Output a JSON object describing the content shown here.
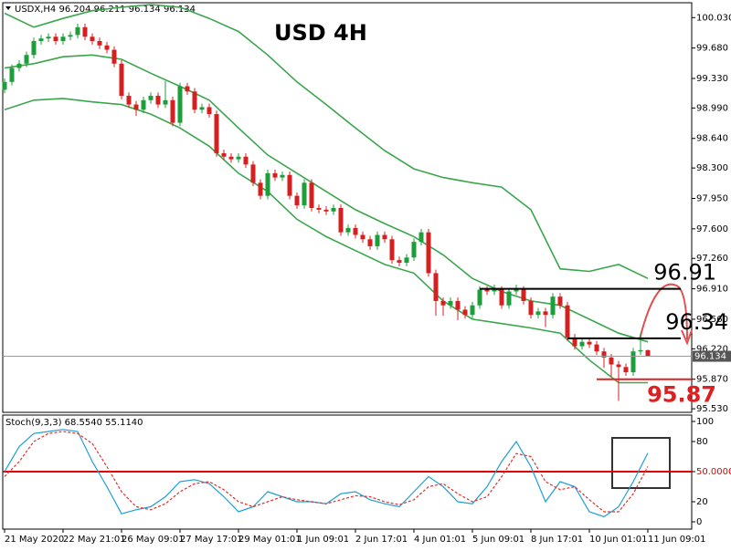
{
  "chart_data": [
    {
      "type": "candlestick",
      "header": "USDX,H4  96.204 96.211 96.134 96.134",
      "title": "USD 4H",
      "up_color": "#1e9e3a",
      "down_color": "#d42020",
      "xlim": [
        -0.25,
        94
      ],
      "ylim": [
        95.51,
        100.18
      ],
      "yticks": [
        {
          "value": 100.03,
          "label": "100.030"
        },
        {
          "value": 99.68,
          "label": "99.680"
        },
        {
          "value": 99.33,
          "label": "99.330"
        },
        {
          "value": 98.99,
          "label": "98.990"
        },
        {
          "value": 98.64,
          "label": "98.640"
        },
        {
          "value": 98.3,
          "label": "98.300"
        },
        {
          "value": 97.95,
          "label": "97.950"
        },
        {
          "value": 97.6,
          "label": "97.600"
        },
        {
          "value": 97.26,
          "label": "97.260"
        },
        {
          "value": 96.91,
          "label": "96.910"
        },
        {
          "value": 96.56,
          "label": "96.560"
        },
        {
          "value": 96.22,
          "label": "96.220"
        },
        {
          "value": 95.87,
          "label": "95.870"
        },
        {
          "value": 95.53,
          "label": "95.530"
        }
      ],
      "ohlc": [
        [
          99.2,
          99.33,
          99.16,
          99.29
        ],
        [
          99.29,
          99.49,
          99.25,
          99.45
        ],
        [
          99.45,
          99.54,
          99.41,
          99.5
        ],
        [
          99.5,
          99.64,
          99.46,
          99.6
        ],
        [
          99.6,
          99.8,
          99.56,
          99.76
        ],
        [
          99.76,
          99.83,
          99.72,
          99.79
        ],
        [
          99.79,
          99.85,
          99.75,
          99.81
        ],
        [
          99.81,
          99.85,
          99.72,
          99.76
        ],
        [
          99.76,
          99.85,
          99.72,
          99.81
        ],
        [
          99.81,
          99.87,
          99.77,
          99.83
        ],
        [
          99.83,
          99.96,
          99.79,
          99.92
        ],
        [
          99.92,
          99.96,
          99.77,
          99.81
        ],
        [
          99.81,
          99.85,
          99.72,
          99.76
        ],
        [
          99.76,
          99.8,
          99.67,
          99.71
        ],
        [
          99.71,
          99.75,
          99.62,
          99.66
        ],
        [
          99.66,
          99.7,
          99.46,
          99.5
        ],
        [
          99.5,
          99.54,
          99.09,
          99.13
        ],
        [
          99.13,
          99.17,
          98.99,
          99.03
        ],
        [
          99.03,
          99.07,
          98.9,
          98.97
        ],
        [
          98.97,
          99.12,
          98.93,
          99.08
        ],
        [
          99.08,
          99.17,
          99.04,
          99.13
        ],
        [
          99.13,
          99.17,
          98.99,
          99.03
        ],
        [
          99.03,
          99.3,
          98.99,
          99.08
        ],
        [
          99.08,
          99.12,
          98.78,
          98.82
        ],
        [
          98.82,
          99.28,
          98.78,
          99.24
        ],
        [
          99.24,
          99.28,
          99.14,
          99.18
        ],
        [
          99.18,
          99.22,
          98.93,
          98.97
        ],
        [
          98.97,
          99.04,
          98.93,
          99.0
        ],
        [
          99.0,
          99.04,
          98.88,
          98.92
        ],
        [
          98.92,
          98.96,
          98.43,
          98.47
        ],
        [
          98.47,
          98.51,
          98.39,
          98.43
        ],
        [
          98.43,
          98.47,
          98.36,
          98.4
        ],
        [
          98.4,
          98.47,
          98.36,
          98.43
        ],
        [
          98.43,
          98.47,
          98.3,
          98.34
        ],
        [
          98.34,
          98.38,
          98.09,
          98.13
        ],
        [
          98.13,
          98.17,
          97.94,
          97.98
        ],
        [
          97.98,
          98.28,
          97.94,
          98.24
        ],
        [
          98.24,
          98.28,
          98.15,
          98.19
        ],
        [
          98.19,
          98.26,
          98.15,
          98.22
        ],
        [
          98.22,
          98.26,
          97.94,
          97.98
        ],
        [
          97.98,
          98.02,
          97.83,
          97.87
        ],
        [
          97.87,
          98.17,
          97.83,
          98.13
        ],
        [
          98.13,
          98.17,
          97.8,
          97.84
        ],
        [
          97.84,
          97.88,
          97.78,
          97.82
        ],
        [
          97.82,
          97.86,
          97.76,
          97.8
        ],
        [
          97.8,
          97.88,
          97.76,
          97.84
        ],
        [
          97.84,
          97.88,
          97.52,
          97.56
        ],
        [
          97.56,
          97.65,
          97.52,
          97.61
        ],
        [
          97.61,
          97.65,
          97.49,
          97.53
        ],
        [
          97.53,
          97.57,
          97.44,
          97.48
        ],
        [
          97.48,
          97.52,
          97.36,
          97.4
        ],
        [
          97.4,
          97.57,
          97.36,
          97.53
        ],
        [
          97.53,
          97.57,
          97.44,
          97.48
        ],
        [
          97.48,
          97.52,
          97.2,
          97.24
        ],
        [
          97.24,
          97.28,
          97.17,
          97.21
        ],
        [
          97.21,
          97.31,
          97.17,
          97.27
        ],
        [
          97.27,
          97.49,
          97.23,
          97.45
        ],
        [
          97.45,
          97.6,
          97.41,
          97.56
        ],
        [
          97.56,
          97.6,
          97.05,
          97.09
        ],
        [
          97.09,
          97.13,
          96.6,
          96.77
        ],
        [
          96.77,
          96.81,
          96.6,
          96.72
        ],
        [
          96.72,
          96.81,
          96.68,
          96.77
        ],
        [
          96.77,
          96.81,
          96.55,
          96.67
        ],
        [
          96.67,
          96.71,
          96.57,
          96.61
        ],
        [
          96.61,
          96.76,
          96.57,
          96.72
        ],
        [
          96.72,
          96.94,
          96.68,
          96.9
        ],
        [
          96.9,
          96.94,
          96.84,
          96.88
        ],
        [
          96.88,
          96.96,
          96.84,
          96.9
        ],
        [
          96.9,
          96.94,
          96.68,
          96.72
        ],
        [
          96.72,
          96.92,
          96.68,
          96.88
        ],
        [
          96.88,
          96.96,
          96.84,
          96.9
        ],
        [
          96.9,
          96.94,
          96.73,
          96.77
        ],
        [
          96.77,
          96.81,
          96.57,
          96.61
        ],
        [
          96.61,
          96.69,
          96.57,
          96.65
        ],
        [
          96.65,
          96.69,
          96.47,
          96.61
        ],
        [
          96.61,
          96.86,
          96.57,
          96.82
        ],
        [
          96.82,
          96.86,
          96.68,
          96.72
        ],
        [
          96.72,
          96.76,
          96.31,
          96.35
        ],
        [
          96.35,
          96.39,
          96.21,
          96.25
        ],
        [
          96.25,
          96.34,
          96.21,
          96.3
        ],
        [
          96.3,
          96.34,
          96.23,
          96.27
        ],
        [
          96.27,
          96.31,
          96.15,
          96.19
        ],
        [
          96.19,
          96.23,
          96.0,
          96.12
        ],
        [
          96.12,
          96.16,
          95.9,
          96.04
        ],
        [
          96.04,
          96.08,
          95.62,
          96.01
        ],
        [
          96.01,
          96.05,
          95.91,
          95.95
        ],
        [
          95.95,
          96.23,
          95.91,
          96.19
        ],
        [
          96.19,
          96.4,
          96.15,
          96.204
        ],
        [
          96.204,
          96.211,
          96.134,
          96.134
        ]
      ],
      "bands": {
        "color": "#3aa64c",
        "x": [
          0,
          4,
          8,
          12,
          16,
          20,
          24,
          28,
          32,
          36,
          40,
          44,
          48,
          52,
          56,
          60,
          64,
          68,
          72,
          76,
          80,
          84,
          88
        ],
        "upper": [
          100.08,
          99.92,
          100.02,
          100.11,
          100.15,
          100.18,
          100.15,
          100.02,
          99.87,
          99.6,
          99.29,
          99.03,
          98.76,
          98.5,
          98.29,
          98.19,
          98.13,
          98.08,
          97.82,
          97.14,
          97.11,
          97.19,
          97.03
        ],
        "middle": [
          99.45,
          99.5,
          99.58,
          99.6,
          99.55,
          99.39,
          99.24,
          99.08,
          98.76,
          98.45,
          98.24,
          98.03,
          97.82,
          97.66,
          97.51,
          97.3,
          97.03,
          96.88,
          96.77,
          96.72,
          96.56,
          96.4,
          96.3
        ],
        "lower": [
          98.97,
          99.08,
          99.1,
          99.06,
          99.03,
          98.92,
          98.76,
          98.55,
          98.24,
          98.03,
          97.71,
          97.51,
          97.35,
          97.19,
          97.09,
          96.77,
          96.56,
          96.51,
          96.46,
          96.4,
          96.09,
          95.83,
          95.83
        ]
      },
      "levels": [
        {
          "value": 96.91,
          "x_start": 65,
          "color": "#000000"
        },
        {
          "value": 96.34,
          "x_start": 77,
          "color": "#000000"
        },
        {
          "value": 95.87,
          "x_start": 81,
          "color": "#e02020"
        }
      ],
      "last_price": 96.134,
      "last_price_color": "#9a9a9a"
    },
    {
      "type": "line",
      "label": "Stoch(9,3,3) 68.5540 55.1140",
      "xlim": [
        -0.25,
        94
      ],
      "ylim": [
        -7.27,
        106.36
      ],
      "yticks": [
        100,
        80,
        {
          "value": 50,
          "label": "50.0000"
        },
        20,
        0
      ],
      "level": 50,
      "level_color": "#e00000",
      "x": [
        0,
        2,
        4,
        6,
        8,
        10,
        12,
        14,
        16,
        18,
        20,
        22,
        24,
        26,
        28,
        30,
        32,
        34,
        36,
        38,
        40,
        42,
        44,
        46,
        48,
        50,
        52,
        54,
        56,
        58,
        60,
        62,
        64,
        66,
        68,
        70,
        72,
        74,
        76,
        78,
        80,
        82,
        84,
        86,
        88
      ],
      "series": [
        {
          "color": "#1e9fd6",
          "style": "solid",
          "values": [
            50,
            75,
            88,
            90,
            92,
            90,
            60,
            35,
            8,
            12,
            15,
            25,
            40,
            42,
            38,
            25,
            10,
            15,
            30,
            25,
            20,
            20,
            18,
            28,
            30,
            22,
            18,
            15,
            30,
            45,
            35,
            20,
            18,
            35,
            60,
            80,
            55,
            20,
            40,
            35,
            10,
            5,
            15,
            40,
            68.554
          ]
        },
        {
          "color": "#e03030",
          "style": "dashed",
          "values": [
            45,
            60,
            80,
            88,
            90,
            88,
            78,
            55,
            30,
            15,
            12,
            18,
            30,
            38,
            40,
            32,
            20,
            15,
            20,
            25,
            22,
            20,
            18,
            22,
            26,
            25,
            20,
            17,
            22,
            35,
            38,
            28,
            20,
            25,
            45,
            68,
            65,
            40,
            32,
            35,
            22,
            10,
            10,
            28,
            55.114
          ]
        }
      ],
      "xticks": [
        {
          "value": 0,
          "label": "21 May 2020"
        },
        {
          "value": 8,
          "label": "22 May 21:01"
        },
        {
          "value": 16,
          "label": "26 May 09:01"
        },
        {
          "value": 24,
          "label": "27 May 17:01"
        },
        {
          "value": 32,
          "label": "29 May 01:01"
        },
        {
          "value": 40,
          "label": "1 Jun 09:01"
        },
        {
          "value": 48,
          "label": "2 Jun 17:01"
        },
        {
          "value": 56,
          "label": "4 Jun 01:01"
        },
        {
          "value": 64,
          "label": "5 Jun 09:01"
        },
        {
          "value": 72,
          "label": "8 Jun 17:01"
        },
        {
          "value": 80,
          "label": "10 Jun 01:01"
        },
        {
          "value": 88,
          "label": "11 Jun 09:01"
        }
      ]
    }
  ]
}
